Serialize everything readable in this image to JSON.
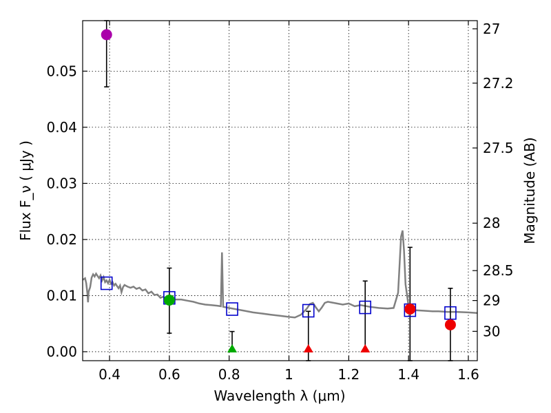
{
  "chart_data": {
    "type": "scatter",
    "xlabel": "Wavelength  λ (μm)",
    "ylabel": "Flux  F_ν  ( μJy )",
    "ylabel_right": "Magnitude (AB)",
    "xlim": [
      0.31,
      1.63
    ],
    "ylim": [
      -0.0016,
      0.059
    ],
    "grid": true,
    "x_ticks": [
      0.4,
      0.6,
      0.8,
      1.0,
      1.2,
      1.4,
      1.6
    ],
    "x_tick_labels": [
      "0.4",
      "0.6",
      "0.8",
      "1",
      "1.2",
      "1.4",
      "1.6"
    ],
    "y_ticks": [
      0.0,
      0.01,
      0.02,
      0.03,
      0.04,
      0.05
    ],
    "y_tick_labels": [
      "0.00",
      "0.01",
      "0.02",
      "0.03",
      "0.04",
      "0.05"
    ],
    "mag_ticks": [
      27,
      27.2,
      27.5,
      28,
      28.5,
      29,
      30
    ],
    "mag_tick_labels": [
      "27",
      "27.2",
      "27.5",
      "28",
      "28.5",
      "29",
      "30"
    ],
    "colors": {
      "model": "#808080",
      "model_points": "#0000cc",
      "purple": "#aa00aa",
      "green": "#00aa00",
      "red": "#ee0000"
    },
    "model_spectrum": [
      [
        0.31,
        0.0128
      ],
      [
        0.318,
        0.0131
      ],
      [
        0.322,
        0.0122
      ],
      [
        0.326,
        0.0104
      ],
      [
        0.328,
        0.0088
      ],
      [
        0.33,
        0.0107
      ],
      [
        0.335,
        0.0115
      ],
      [
        0.34,
        0.0132
      ],
      [
        0.345,
        0.0138
      ],
      [
        0.35,
        0.0134
      ],
      [
        0.355,
        0.0139
      ],
      [
        0.36,
        0.0135
      ],
      [
        0.365,
        0.0131
      ],
      [
        0.37,
        0.0136
      ],
      [
        0.375,
        0.0127
      ],
      [
        0.38,
        0.0133
      ],
      [
        0.385,
        0.0124
      ],
      [
        0.39,
        0.0127
      ],
      [
        0.395,
        0.0122
      ],
      [
        0.4,
        0.0128
      ],
      [
        0.405,
        0.0121
      ],
      [
        0.41,
        0.0124
      ],
      [
        0.415,
        0.0118
      ],
      [
        0.42,
        0.0121
      ],
      [
        0.425,
        0.0117
      ],
      [
        0.43,
        0.0113
      ],
      [
        0.435,
        0.0118
      ],
      [
        0.44,
        0.0106
      ],
      [
        0.445,
        0.0115
      ],
      [
        0.45,
        0.0119
      ],
      [
        0.46,
        0.0116
      ],
      [
        0.47,
        0.0114
      ],
      [
        0.48,
        0.0116
      ],
      [
        0.49,
        0.0112
      ],
      [
        0.5,
        0.0114
      ],
      [
        0.51,
        0.0109
      ],
      [
        0.52,
        0.0111
      ],
      [
        0.53,
        0.0104
      ],
      [
        0.54,
        0.0107
      ],
      [
        0.55,
        0.0101
      ],
      [
        0.56,
        0.0102
      ],
      [
        0.57,
        0.0096
      ],
      [
        0.58,
        0.0098
      ],
      [
        0.59,
        0.0094
      ],
      [
        0.6,
        0.0097
      ],
      [
        0.61,
        0.0095
      ],
      [
        0.62,
        0.0093
      ],
      [
        0.64,
        0.0093
      ],
      [
        0.66,
        0.0091
      ],
      [
        0.68,
        0.0089
      ],
      [
        0.7,
        0.0086
      ],
      [
        0.72,
        0.0084
      ],
      [
        0.74,
        0.0083
      ],
      [
        0.76,
        0.0082
      ],
      [
        0.772,
        0.0081
      ],
      [
        0.776,
        0.0177
      ],
      [
        0.78,
        0.008
      ],
      [
        0.8,
        0.0078
      ],
      [
        0.82,
        0.0076
      ],
      [
        0.85,
        0.0073
      ],
      [
        0.88,
        0.007
      ],
      [
        0.91,
        0.0068
      ],
      [
        0.94,
        0.0066
      ],
      [
        0.97,
        0.0064
      ],
      [
        1.0,
        0.0062
      ],
      [
        1.02,
        0.0061
      ],
      [
        1.04,
        0.0066
      ],
      [
        1.06,
        0.0077
      ],
      [
        1.07,
        0.0085
      ],
      [
        1.08,
        0.0087
      ],
      [
        1.09,
        0.0079
      ],
      [
        1.1,
        0.0072
      ],
      [
        1.11,
        0.0079
      ],
      [
        1.12,
        0.0087
      ],
      [
        1.13,
        0.0089
      ],
      [
        1.15,
        0.0087
      ],
      [
        1.18,
        0.0084
      ],
      [
        1.2,
        0.0086
      ],
      [
        1.22,
        0.0081
      ],
      [
        1.24,
        0.0083
      ],
      [
        1.27,
        0.008
      ],
      [
        1.3,
        0.0078
      ],
      [
        1.33,
        0.0077
      ],
      [
        1.35,
        0.0078
      ],
      [
        1.365,
        0.0105
      ],
      [
        1.375,
        0.0205
      ],
      [
        1.38,
        0.0216
      ],
      [
        1.385,
        0.018
      ],
      [
        1.39,
        0.012
      ],
      [
        1.4,
        0.0081
      ],
      [
        1.42,
        0.0074
      ],
      [
        1.45,
        0.0073
      ],
      [
        1.48,
        0.0072
      ],
      [
        1.5,
        0.0072
      ],
      [
        1.53,
        0.0071
      ],
      [
        1.56,
        0.0071
      ],
      [
        1.6,
        0.007
      ],
      [
        1.63,
        0.0069
      ]
    ],
    "model_points": [
      {
        "x": 0.39,
        "y": 0.0122
      },
      {
        "x": 0.6,
        "y": 0.0096
      },
      {
        "x": 0.81,
        "y": 0.0076
      },
      {
        "x": 1.065,
        "y": 0.0073
      },
      {
        "x": 1.255,
        "y": 0.0079
      },
      {
        "x": 1.405,
        "y": 0.0074
      },
      {
        "x": 1.54,
        "y": 0.0069
      }
    ],
    "observations": [
      {
        "x": 0.39,
        "y": 0.0565,
        "err_low": 0.0472,
        "err_high": 0.059,
        "marker": "circle",
        "color": "purple"
      },
      {
        "x": 0.6,
        "y": 0.0092,
        "err_low": 0.0033,
        "err_high": 0.0149,
        "marker": "circle",
        "color": "green"
      },
      {
        "x": 0.81,
        "y": 0.0,
        "err_low": 0.0,
        "err_high": 0.0036,
        "marker": "triangle",
        "color": "green"
      },
      {
        "x": 1.065,
        "y": 0.0,
        "err_low": -0.0016,
        "err_high": 0.0072,
        "marker": "triangle",
        "color": "red"
      },
      {
        "x": 1.255,
        "y": 0.0,
        "err_low": 0.0,
        "err_high": 0.0126,
        "marker": "triangle",
        "color": "red"
      },
      {
        "x": 1.405,
        "y": 0.0076,
        "err_low": -0.0016,
        "err_high": 0.0186,
        "marker": "circle",
        "color": "red"
      },
      {
        "x": 1.54,
        "y": 0.0048,
        "err_low": -0.0016,
        "err_high": 0.0113,
        "marker": "circle",
        "color": "red"
      }
    ]
  }
}
